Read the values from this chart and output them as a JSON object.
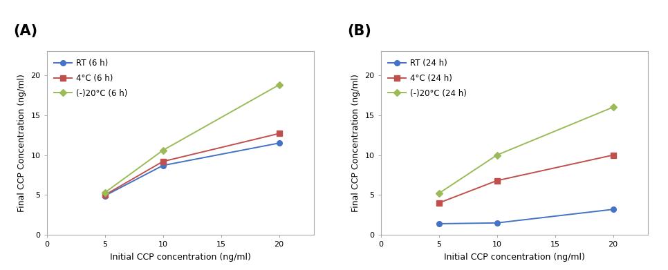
{
  "x": [
    5,
    10,
    20
  ],
  "panel_A": {
    "label": "(A)",
    "series": [
      {
        "label": "RT (6 h)",
        "color": "#4472C4",
        "marker": "o",
        "values": [
          4.9,
          8.7,
          11.5
        ]
      },
      {
        "label": "4°C (6 h)",
        "color": "#C0504D",
        "marker": "s",
        "values": [
          5.0,
          9.2,
          12.7
        ]
      },
      {
        "label": "(-)20°C (6 h)",
        "color": "#9BBB59",
        "marker": "D",
        "values": [
          5.3,
          10.6,
          18.8
        ]
      }
    ],
    "xlabel": "Initial CCP concentration (ng/ml)",
    "ylabel": "Final CCP Concentration (ng/ml)",
    "xlim": [
      0,
      23
    ],
    "ylim": [
      0,
      23
    ],
    "xticks": [
      0,
      5,
      10,
      15,
      20
    ],
    "yticks": [
      0,
      5,
      10,
      15,
      20
    ]
  },
  "panel_B": {
    "label": "(B)",
    "series": [
      {
        "label": "RT (24 h)",
        "color": "#4472C4",
        "marker": "o",
        "values": [
          1.4,
          1.5,
          3.2
        ]
      },
      {
        "label": "4°C (24 h)",
        "color": "#C0504D",
        "marker": "s",
        "values": [
          4.0,
          6.8,
          10.0
        ]
      },
      {
        "label": "(-)20°C (24 h)",
        "color": "#9BBB59",
        "marker": "D",
        "values": [
          5.2,
          10.0,
          16.0
        ]
      }
    ],
    "xlabel": "Initial CCP concentration (ng/ml)",
    "ylabel": "Final CCP Concentration (ng/ml)",
    "xlim": [
      0,
      23
    ],
    "ylim": [
      0,
      23
    ],
    "xticks": [
      0,
      5,
      10,
      15,
      20
    ],
    "yticks": [
      0,
      5,
      10,
      15,
      20
    ]
  },
  "background_color": "#ffffff",
  "axes_facecolor": "#ffffff",
  "spine_color": "#aaaaaa",
  "label_fontsize": 15,
  "axis_label_fontsize": 9,
  "tick_fontsize": 8,
  "legend_fontsize": 8.5,
  "linewidth": 1.4,
  "markersize": 5.5
}
